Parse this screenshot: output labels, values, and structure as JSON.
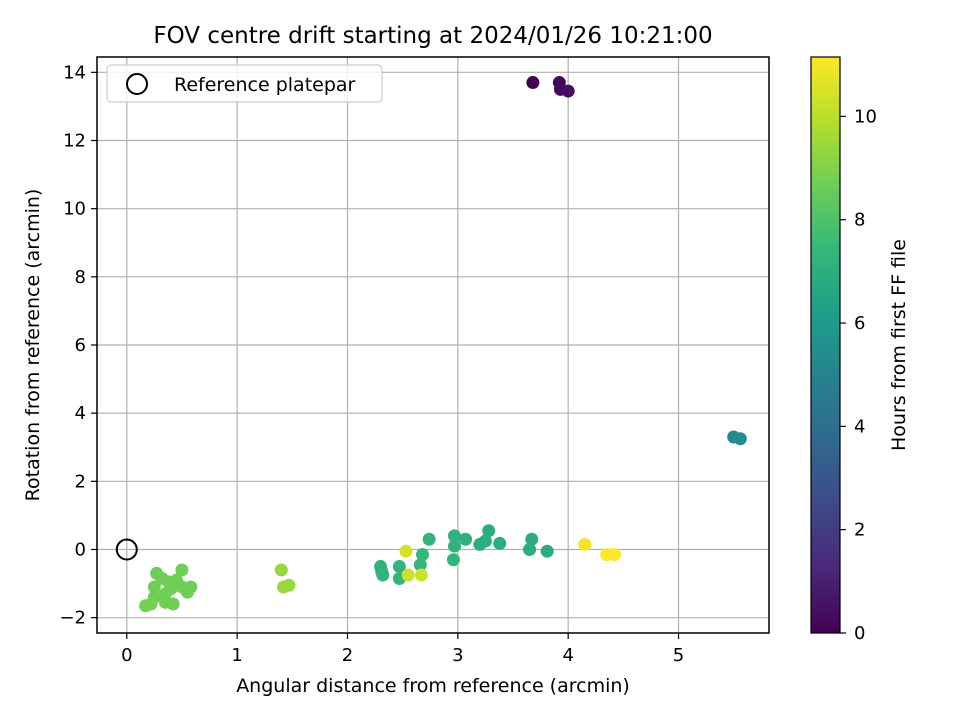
{
  "chart_data": {
    "type": "scatter",
    "title": "FOV centre drift starting at 2024/01/26 10:21:00",
    "xlabel": "Angular distance from reference (arcmin)",
    "ylabel": "Rotation from reference (arcmin)",
    "xlim": [
      -0.27,
      5.82
    ],
    "ylim": [
      -2.45,
      14.45
    ],
    "xticks": [
      0,
      1,
      2,
      3,
      4,
      5
    ],
    "yticks": [
      -2,
      0,
      2,
      4,
      6,
      8,
      10,
      12,
      14
    ],
    "grid": true,
    "legend": {
      "placement": "top-left",
      "entries": [
        "Reference platepar"
      ]
    },
    "reference_point": {
      "name": "Reference platepar",
      "x": 0,
      "y": 0
    },
    "colorbar": {
      "label": "Hours from first FF file",
      "colormap": "viridis",
      "range": [
        0,
        11.15
      ],
      "ticks": [
        0,
        2,
        4,
        6,
        8,
        10
      ]
    },
    "colormap_stops": [
      "#440154",
      "#482878",
      "#3e4989",
      "#31688e",
      "#26828e",
      "#1f9e89",
      "#35b779",
      "#6ece58",
      "#b5de2b",
      "#fde725"
    ],
    "points": [
      {
        "x": 3.68,
        "y": 13.7,
        "t": 0.0
      },
      {
        "x": 3.92,
        "y": 13.7,
        "t": 0.15
      },
      {
        "x": 3.93,
        "y": 13.5,
        "t": 0.3
      },
      {
        "x": 4.0,
        "y": 13.45,
        "t": 0.4
      },
      {
        "x": 5.5,
        "y": 3.3,
        "t": 5.3
      },
      {
        "x": 5.56,
        "y": 3.25,
        "t": 5.4
      },
      {
        "x": 2.3,
        "y": -0.5,
        "t": 7.2
      },
      {
        "x": 2.31,
        "y": -0.65,
        "t": 7.2
      },
      {
        "x": 2.32,
        "y": -0.75,
        "t": 7.25
      },
      {
        "x": 2.47,
        "y": -0.5,
        "t": 7.3
      },
      {
        "x": 2.47,
        "y": -0.85,
        "t": 7.3
      },
      {
        "x": 2.66,
        "y": -0.45,
        "t": 7.4
      },
      {
        "x": 2.68,
        "y": -0.15,
        "t": 7.4
      },
      {
        "x": 2.74,
        "y": 0.3,
        "t": 7.3
      },
      {
        "x": 2.97,
        "y": 0.4,
        "t": 7.2
      },
      {
        "x": 2.97,
        "y": 0.1,
        "t": 7.2
      },
      {
        "x": 2.96,
        "y": -0.3,
        "t": 7.3
      },
      {
        "x": 3.07,
        "y": 0.3,
        "t": 7.1
      },
      {
        "x": 3.2,
        "y": 0.15,
        "t": 7.0
      },
      {
        "x": 3.25,
        "y": 0.25,
        "t": 7.0
      },
      {
        "x": 3.28,
        "y": 0.55,
        "t": 6.9
      },
      {
        "x": 3.38,
        "y": 0.18,
        "t": 6.9
      },
      {
        "x": 3.67,
        "y": 0.3,
        "t": 6.9
      },
      {
        "x": 3.65,
        "y": 0.0,
        "t": 6.9
      },
      {
        "x": 3.81,
        "y": -0.05,
        "t": 6.9
      },
      {
        "x": 0.27,
        "y": -0.7,
        "t": 8.6
      },
      {
        "x": 0.5,
        "y": -0.6,
        "t": 8.7
      },
      {
        "x": 0.32,
        "y": -0.85,
        "t": 8.7
      },
      {
        "x": 0.38,
        "y": -0.95,
        "t": 8.7
      },
      {
        "x": 0.45,
        "y": -0.9,
        "t": 8.7
      },
      {
        "x": 0.25,
        "y": -1.1,
        "t": 8.7
      },
      {
        "x": 0.4,
        "y": -1.15,
        "t": 8.7
      },
      {
        "x": 0.5,
        "y": -1.1,
        "t": 8.7
      },
      {
        "x": 0.58,
        "y": -1.1,
        "t": 8.7
      },
      {
        "x": 0.55,
        "y": -1.25,
        "t": 8.7
      },
      {
        "x": 0.35,
        "y": -1.3,
        "t": 8.7
      },
      {
        "x": 0.25,
        "y": -1.4,
        "t": 8.7
      },
      {
        "x": 0.22,
        "y": -1.6,
        "t": 8.8
      },
      {
        "x": 0.17,
        "y": -1.65,
        "t": 8.8
      },
      {
        "x": 0.35,
        "y": -1.55,
        "t": 8.7
      },
      {
        "x": 0.42,
        "y": -1.6,
        "t": 8.7
      },
      {
        "x": 1.4,
        "y": -0.6,
        "t": 9.4
      },
      {
        "x": 1.42,
        "y": -1.1,
        "t": 9.4
      },
      {
        "x": 1.47,
        "y": -1.05,
        "t": 9.4
      },
      {
        "x": 2.53,
        "y": -0.05,
        "t": 10.4
      },
      {
        "x": 2.55,
        "y": -0.75,
        "t": 10.3
      },
      {
        "x": 2.67,
        "y": -0.75,
        "t": 10.3
      },
      {
        "x": 4.15,
        "y": 0.15,
        "t": 11.0
      },
      {
        "x": 4.35,
        "y": -0.15,
        "t": 11.1
      },
      {
        "x": 4.42,
        "y": -0.15,
        "t": 11.1
      }
    ]
  }
}
